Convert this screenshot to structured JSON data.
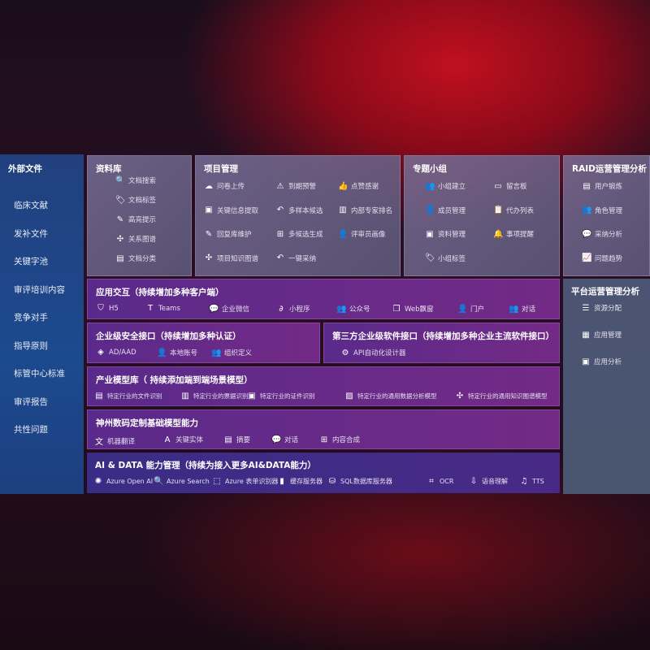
{
  "external": {
    "title": "外部文件",
    "items": [
      "临床文献",
      "发补文件",
      "关键字池",
      "审评培训内容",
      "竞争对手",
      "指导原则",
      "标管中心标准",
      "审评报告",
      "共性问题"
    ]
  },
  "library": {
    "title": "资料库",
    "items": [
      {
        "icon": "doc-search",
        "glyph": "🔍",
        "label": "文档搜索"
      },
      {
        "icon": "tag",
        "glyph": "🏷",
        "label": "文档标签"
      },
      {
        "icon": "pen",
        "glyph": "✎",
        "label": "高亮提示"
      },
      {
        "icon": "graph",
        "glyph": "✣",
        "label": "关系图谱"
      },
      {
        "icon": "doc-classify",
        "glyph": "▤",
        "label": "文档分类"
      }
    ]
  },
  "project": {
    "title": "项目管理",
    "items": [
      {
        "icon": "cloud-upload",
        "glyph": "☁",
        "label": "问卷上传"
      },
      {
        "icon": "alarm",
        "glyph": "⚠",
        "label": "到期预警"
      },
      {
        "icon": "thumbs-up",
        "glyph": "👍",
        "label": "点赞感谢"
      },
      {
        "icon": "info-extract",
        "glyph": "▣",
        "label": "关键信息提取"
      },
      {
        "icon": "reply",
        "glyph": "↶",
        "label": "多样本候选"
      },
      {
        "icon": "ranking",
        "glyph": "▥",
        "label": "内部专家排名"
      },
      {
        "icon": "edit",
        "glyph": "✎",
        "label": "回复库维护"
      },
      {
        "icon": "puzzle",
        "glyph": "⊞",
        "label": "多候选生成"
      },
      {
        "icon": "reviewer",
        "glyph": "👤",
        "label": "评审员画像"
      },
      {
        "icon": "knowledge-graph",
        "glyph": "✣",
        "label": "项目知识图谱"
      },
      {
        "icon": "reply",
        "glyph": "↶",
        "label": "一键采纳"
      }
    ]
  },
  "group": {
    "title": "专题小组",
    "items": [
      {
        "icon": "users",
        "glyph": "👥",
        "label": "小组建立"
      },
      {
        "icon": "bbs",
        "glyph": "▭",
        "label": "留言板"
      },
      {
        "icon": "member",
        "glyph": "👤",
        "label": "成员管理"
      },
      {
        "icon": "clipboard",
        "glyph": "📋",
        "label": "代办列表"
      },
      {
        "icon": "folder",
        "glyph": "▣",
        "label": "资料管理"
      },
      {
        "icon": "bell",
        "glyph": "🔔",
        "label": "事项提醒"
      },
      {
        "icon": "tag",
        "glyph": "🏷",
        "label": "小组标签"
      }
    ]
  },
  "raid": {
    "title": "RAID运营管理分析",
    "items": [
      {
        "icon": "id-card",
        "glyph": "▤",
        "label": "用户锻炼"
      },
      {
        "icon": "users",
        "glyph": "👥",
        "label": "角色管理"
      },
      {
        "icon": "qa",
        "glyph": "💬",
        "label": "采纳分析"
      },
      {
        "icon": "trend",
        "glyph": "📈",
        "label": "问题趋势"
      }
    ]
  },
  "platform": {
    "title": "平台运营管理分析",
    "items": [
      {
        "icon": "checklist",
        "glyph": "☰",
        "label": "资源分配"
      },
      {
        "icon": "apps",
        "glyph": "▦",
        "label": "应用管理"
      },
      {
        "icon": "analytics",
        "glyph": "▣",
        "label": "应用分析"
      }
    ]
  },
  "app": {
    "title": "应用交互（持续增加多种客户端）",
    "items": [
      {
        "icon": "html5",
        "glyph": "⛉",
        "label": "H5"
      },
      {
        "icon": "teams",
        "glyph": "T",
        "label": "Teams"
      },
      {
        "icon": "wechat-work",
        "glyph": "💬",
        "label": "企业微信"
      },
      {
        "icon": "miniprogram",
        "glyph": "∂",
        "label": "小程序"
      },
      {
        "icon": "official-account",
        "glyph": "👥",
        "label": "公众号"
      },
      {
        "icon": "web-window",
        "glyph": "❐",
        "label": "Web飘窗"
      },
      {
        "icon": "portal",
        "glyph": "👤",
        "label": "门户"
      },
      {
        "icon": "chat",
        "glyph": "👥",
        "label": "对话"
      }
    ]
  },
  "security": {
    "title": "企业级安全接口（持续增加多种认证）",
    "items": [
      {
        "icon": "ad",
        "glyph": "◈",
        "label": "AD/AAD"
      },
      {
        "icon": "local-account",
        "glyph": "👤",
        "label": "本地账号"
      },
      {
        "icon": "org",
        "glyph": "👥",
        "label": "组织定义"
      }
    ]
  },
  "third": {
    "title": "第三方企业级软件接口（持续增加多种企业主流软件接口）",
    "items": [
      {
        "icon": "api-gear",
        "glyph": "⚙",
        "label": "API自动化设计器"
      }
    ]
  },
  "industry": {
    "title": "产业模型库（ 持续添加端到端场景模型）",
    "items": [
      {
        "icon": "file",
        "glyph": "▤",
        "label": "特定行业的文件识别"
      },
      {
        "icon": "receipt",
        "glyph": "▥",
        "label": "特定行业的票据识别"
      },
      {
        "icon": "id-card",
        "glyph": "▣",
        "label": "特定行业的证件识别"
      },
      {
        "icon": "image-chart",
        "glyph": "▨",
        "label": "特定行业的通用数据分析模型"
      },
      {
        "icon": "knowledge-graph",
        "glyph": "✣",
        "label": "特定行业的通用知识图谱模型"
      }
    ]
  },
  "base": {
    "title": "神州数码定制基础模型能力",
    "items": [
      {
        "icon": "translate",
        "glyph": "文",
        "label": "机器翻译"
      },
      {
        "icon": "entity",
        "glyph": "A",
        "label": "关键实体"
      },
      {
        "icon": "summary",
        "glyph": "▤",
        "label": "摘要"
      },
      {
        "icon": "dialog",
        "glyph": "💬",
        "label": "对话"
      },
      {
        "icon": "compose",
        "glyph": "⊞",
        "label": "内容合成"
      }
    ]
  },
  "ai": {
    "title": "AI & DATA 能力管理（持续为接入更多AI&DATA能力）",
    "items": [
      {
        "icon": "openai",
        "glyph": "✺",
        "label": "Azure Open AI"
      },
      {
        "icon": "search-doc",
        "glyph": "🔍",
        "label": "Azure Search"
      },
      {
        "icon": "form-recognizer",
        "glyph": "⬚",
        "label": "Azure 表单识别器"
      },
      {
        "icon": "cache-server",
        "glyph": "▮",
        "label": "缓存服务器"
      },
      {
        "icon": "sql-db",
        "glyph": "⛁",
        "label": "SQL数据库服务器"
      },
      {
        "icon": "ocr",
        "glyph": "⌗",
        "label": "OCR"
      },
      {
        "icon": "speech",
        "glyph": "⇩",
        "label": "语音理解"
      },
      {
        "icon": "tts",
        "glyph": "♫",
        "label": "TTS"
      }
    ]
  }
}
